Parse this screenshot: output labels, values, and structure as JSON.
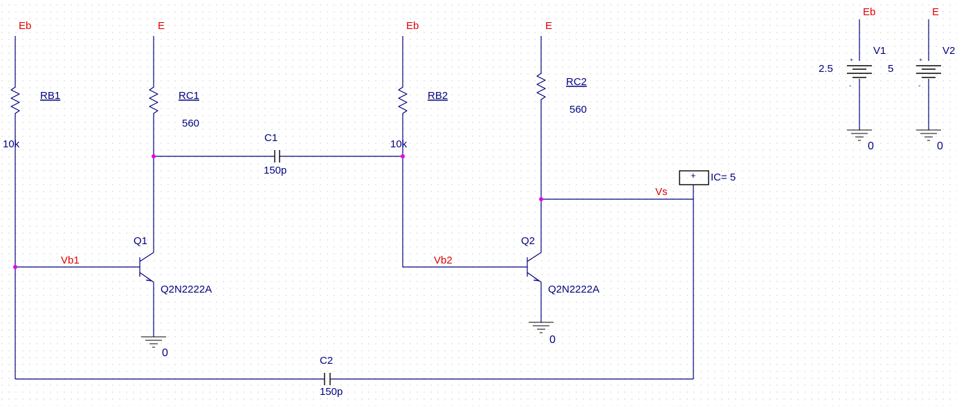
{
  "colors": {
    "net_label": "#e00000",
    "part_text": "#000080",
    "wire": "#000080",
    "junction": "#e600e6",
    "grid": "#c8c8c8"
  },
  "nets": {
    "eb": "Eb",
    "e": "E",
    "vb1": "Vb1",
    "vb2": "Vb2",
    "vs": "Vs",
    "gnd": "0"
  },
  "parts": {
    "rb1": {
      "ref": "RB1",
      "value": "10k"
    },
    "rc1": {
      "ref": "RC1",
      "value": "560"
    },
    "rb2": {
      "ref": "RB2",
      "value": "10k"
    },
    "rc2": {
      "ref": "RC2",
      "value": "560"
    },
    "c1": {
      "ref": "C1",
      "value": "150p"
    },
    "c2": {
      "ref": "C2",
      "value": "150p"
    },
    "q1": {
      "ref": "Q1",
      "model": "Q2N2222A"
    },
    "q2": {
      "ref": "Q2",
      "model": "Q2N2222A"
    },
    "v1": {
      "ref": "V1",
      "value": "2.5",
      "plus": "+",
      "minus": "-"
    },
    "v2": {
      "ref": "V2",
      "value": "5",
      "plus": "+",
      "minus": "-"
    },
    "ic": {
      "label": "IC= 5",
      "symbol": "+"
    }
  }
}
